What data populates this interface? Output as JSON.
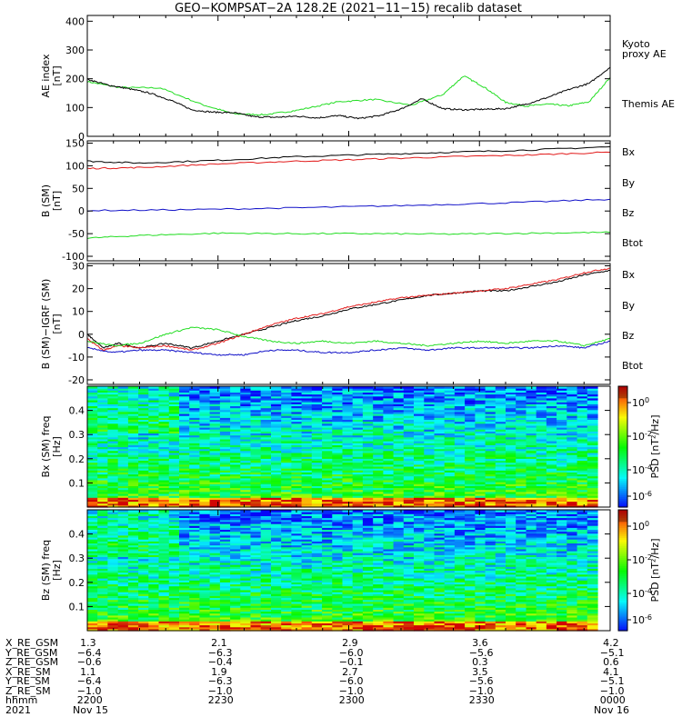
{
  "title": "GEO−KOMPSAT−2A 128.2E (2021−11−15) recalib dataset",
  "colors": {
    "black": "#000000",
    "green": "#22dd22",
    "red": "#e21a1a",
    "blue": "#1010c8"
  },
  "chart_data": [
    {
      "type": "line",
      "ylabel": "AE index [nT]",
      "ylim": [
        0,
        420
      ],
      "yticks": [
        "0",
        "100",
        "200",
        "300",
        "400"
      ],
      "series": [
        {
          "name": "Kyoto proxy AE",
          "legend": [
            "Kyoto",
            "proxy AE"
          ],
          "color": "#22dd22",
          "x": [
            0,
            6,
            14,
            22,
            28,
            34,
            40,
            48,
            55,
            62,
            68,
            72,
            76,
            80,
            84,
            88,
            92,
            96,
            100
          ],
          "values": [
            190,
            170,
            168,
            110,
            78,
            75,
            90,
            120,
            128,
            108,
            145,
            210,
            170,
            118,
            105,
            112,
            106,
            120,
            205
          ]
        },
        {
          "name": "Themis AE",
          "legend": [
            "Themis AE"
          ],
          "color": "#000000",
          "x": [
            0,
            4,
            8,
            12,
            16,
            20,
            24,
            28,
            32,
            36,
            40,
            44,
            48,
            52,
            56,
            60,
            64,
            68,
            72,
            76,
            80,
            84,
            88,
            92,
            96,
            100
          ],
          "values": [
            198,
            178,
            165,
            150,
            125,
            92,
            84,
            82,
            68,
            66,
            70,
            64,
            72,
            62,
            72,
            95,
            130,
            96,
            92,
            94,
            96,
            112,
            135,
            162,
            184,
            240
          ]
        }
      ]
    },
    {
      "type": "line",
      "ylabel": "B (SM) [nT]",
      "ylim": [
        -110,
        155
      ],
      "yticks": [
        "-100",
        "-50",
        "0",
        "50",
        "100",
        "150"
      ],
      "legend": [
        "Bx",
        "By",
        "Bz",
        "Btot"
      ],
      "legend_colors": [
        "#1010c8",
        "#22dd22",
        "#e21a1a",
        "#000000"
      ],
      "series": [
        {
          "name": "Btot",
          "color": "#000000",
          "x": [
            0,
            10,
            25,
            40,
            55,
            70,
            85,
            100
          ],
          "values": [
            110,
            106,
            112,
            120,
            125,
            130,
            135,
            142
          ]
        },
        {
          "name": "Bz",
          "color": "#e21a1a",
          "x": [
            0,
            10,
            25,
            40,
            55,
            70,
            85,
            100
          ],
          "values": [
            94,
            96,
            104,
            110,
            115,
            120,
            124,
            130
          ]
        },
        {
          "name": "Bx",
          "color": "#1010c8",
          "x": [
            0,
            20,
            40,
            60,
            80,
            100
          ],
          "values": [
            1,
            3,
            7,
            12,
            18,
            26
          ]
        },
        {
          "name": "By",
          "color": "#22dd22",
          "x": [
            0,
            10,
            25,
            40,
            55,
            70,
            85,
            100
          ],
          "values": [
            -60,
            -54,
            -49,
            -50,
            -50,
            -51,
            -49,
            -47
          ]
        }
      ]
    },
    {
      "type": "line",
      "ylabel": "B (SM)−IGRF (SM) [nT]",
      "ylim": [
        -22,
        31
      ],
      "yticks": [
        "-20",
        "-10",
        "0",
        "10",
        "20",
        "30"
      ],
      "legend": [
        "Bx",
        "By",
        "Bz",
        "Btot"
      ],
      "legend_colors": [
        "#1010c8",
        "#22dd22",
        "#e21a1a",
        "#000000"
      ],
      "series": [
        {
          "name": "Btot",
          "color": "#000000",
          "x": [
            0,
            3,
            6,
            10,
            15,
            20,
            25,
            30,
            35,
            40,
            45,
            50,
            55,
            60,
            65,
            70,
            75,
            80,
            85,
            90,
            95,
            100
          ],
          "values": [
            0,
            -6,
            -4,
            -6,
            -4,
            -6,
            -3,
            0,
            3,
            6,
            8,
            11,
            13,
            15,
            17,
            18,
            19,
            19,
            21,
            23,
            26,
            28
          ]
        },
        {
          "name": "Bz",
          "color": "#e21a1a",
          "x": [
            0,
            3,
            6,
            10,
            15,
            20,
            25,
            30,
            35,
            40,
            45,
            50,
            55,
            60,
            65,
            70,
            75,
            80,
            85,
            90,
            95,
            100
          ],
          "values": [
            -2,
            -7,
            -5,
            -6,
            -5,
            -7,
            -4,
            0,
            4,
            7,
            9,
            12,
            14,
            16,
            17,
            18,
            19,
            20,
            22,
            24,
            27,
            29
          ]
        },
        {
          "name": "By",
          "color": "#22dd22",
          "x": [
            0,
            5,
            10,
            15,
            20,
            25,
            30,
            35,
            40,
            45,
            50,
            55,
            60,
            65,
            70,
            75,
            80,
            85,
            90,
            95,
            100
          ],
          "values": [
            -3,
            -5,
            -4,
            0,
            3,
            2,
            -1,
            -3,
            -4,
            -3,
            -4,
            -3,
            -4,
            -5,
            -4,
            -3,
            -4,
            -3,
            -3,
            -5,
            -2
          ]
        },
        {
          "name": "Bx",
          "color": "#1010c8",
          "x": [
            0,
            5,
            10,
            15,
            20,
            25,
            30,
            35,
            40,
            45,
            50,
            55,
            60,
            65,
            70,
            75,
            80,
            85,
            90,
            95,
            100
          ],
          "values": [
            -6,
            -8,
            -7,
            -7,
            -8,
            -9,
            -9,
            -7,
            -7,
            -8,
            -8,
            -7,
            -6,
            -7,
            -6,
            -6,
            -6,
            -6,
            -5,
            -6,
            -3
          ]
        }
      ]
    },
    {
      "type": "heatmap",
      "ylabel": "Bx (SM) freq [Hz]",
      "ylim": [
        0,
        0.5
      ],
      "yticks": [
        "0.1",
        "0.2",
        "0.3",
        "0.4"
      ],
      "colorbar_label": "PSD [nT²/Hz]",
      "colorbar_ticks": [
        "10^0",
        "10^-2",
        "10^-4",
        "10^-6"
      ]
    },
    {
      "type": "heatmap",
      "ylabel": "Bz (SM) freq [Hz]",
      "ylim": [
        0,
        0.5
      ],
      "yticks": [
        "0.1",
        "0.2",
        "0.3",
        "0.4"
      ],
      "colorbar_label": "PSD [nT²/Hz]",
      "colorbar_ticks": [
        "10^0",
        "10^-2",
        "10^-4",
        "10^-6"
      ]
    }
  ],
  "axis_table": {
    "labels": [
      "X_RE_GSM",
      "Y_RE_GSM",
      "Z_RE_GSM",
      "X_RE_SM",
      "Y_RE_SM",
      "Z_RE_SM",
      "hhmm",
      "2021"
    ],
    "columns": [
      [
        "1.3",
        "−6.4",
        "−0.6",
        "1.1",
        "−6.4",
        "−1.0",
        "2200",
        "Nov 15"
      ],
      [
        "2.1",
        "−6.3",
        "−0.4",
        "1.9",
        "−6.3",
        "−1.0",
        "2230",
        ""
      ],
      [
        "2.9",
        "−6.0",
        "−0.1",
        "2.7",
        "−6.0",
        "−1.0",
        "2300",
        ""
      ],
      [
        "3.6",
        "−5.6",
        "0.3",
        "3.5",
        "−5.6",
        "−1.0",
        "2330",
        ""
      ],
      [
        "4.2",
        "−5.1",
        "0.6",
        "4.1",
        "−5.1",
        "−1.0",
        "0000",
        "Nov 16"
      ]
    ]
  }
}
